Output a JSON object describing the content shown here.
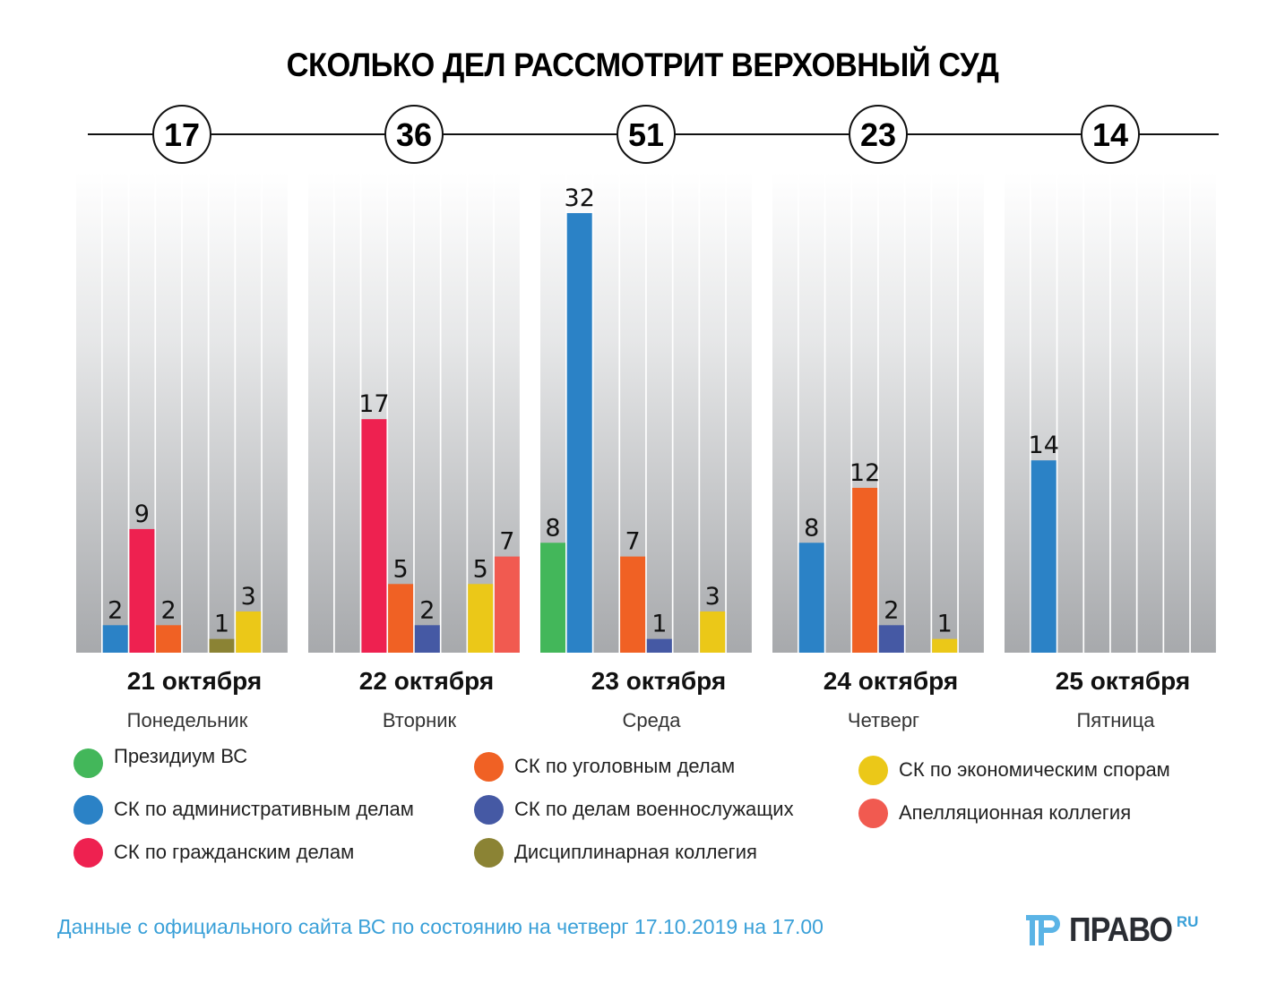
{
  "chart_data": {
    "type": "bar",
    "title": "СКОЛЬКО ДЕЛ РАССМОТРИТ ВЕРХОВНЫЙ СУД",
    "xlabel": "",
    "ylabel": "",
    "ylim": [
      0,
      35
    ],
    "grid": false,
    "legend_position": "bottom",
    "categories": [
      "21 октября",
      "22 октября",
      "23 октября",
      "24 октября",
      "25 октября"
    ],
    "weekdays": [
      "Понедельник",
      "Вторник",
      "Среда",
      "Четверг",
      "Пятница"
    ],
    "totals": [
      17,
      36,
      51,
      23,
      14
    ],
    "series": [
      {
        "name": "Президиум ВС",
        "color": "#43b75a",
        "values": [
          0,
          0,
          8,
          0,
          0
        ]
      },
      {
        "name": "СК по административным делам",
        "color": "#2b82c6",
        "values": [
          2,
          0,
          32,
          8,
          14
        ]
      },
      {
        "name": "СК по гражданским делам",
        "color": "#ee2150",
        "values": [
          9,
          17,
          0,
          0,
          0
        ]
      },
      {
        "name": "СК по уголовным делам",
        "color": "#f06124",
        "values": [
          2,
          5,
          7,
          12,
          0
        ]
      },
      {
        "name": "СК по делам военнослужащих",
        "color": "#4559a4",
        "values": [
          0,
          2,
          1,
          2,
          0
        ]
      },
      {
        "name": "Дисциплинарная коллегия",
        "color": "#8b8334",
        "values": [
          1,
          0,
          0,
          0,
          0
        ]
      },
      {
        "name": "СК по экономическим спорам",
        "color": "#ebc818",
        "values": [
          3,
          5,
          3,
          1,
          0
        ]
      },
      {
        "name": "Апелляционная коллегия",
        "color": "#f15a50",
        "values": [
          0,
          7,
          0,
          0,
          0
        ]
      }
    ]
  },
  "legend_layout": [
    [
      0,
      1,
      2
    ],
    [
      3,
      4,
      5
    ],
    [
      6,
      7
    ]
  ],
  "footer": {
    "source_note": "Данные с официального сайта ВС по состоянию на четверг 17.10.2019 на 17.00"
  },
  "logo": {
    "text": "ПРАВО",
    "suffix": "RU"
  }
}
